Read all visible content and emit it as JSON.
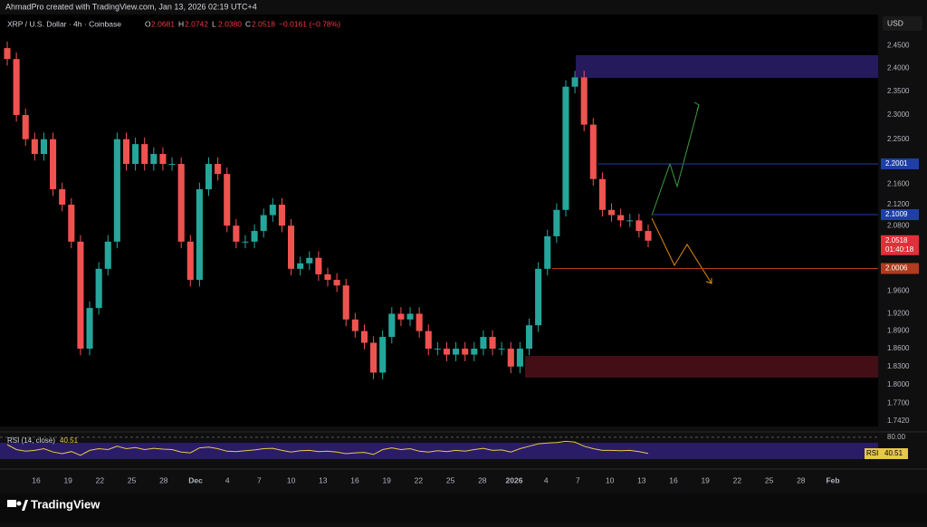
{
  "header": {
    "credit": "AhmadPro created with TradingView.com, Jan 13, 2026 02:19 UTC+4",
    "symbol": "XRP / U.S. Dollar · 4h · Coinbase",
    "ohlc": [
      {
        "label": "O",
        "value": "2.0681"
      },
      {
        "label": "H",
        "value": "2.0742"
      },
      {
        "label": "L",
        "value": "2.0380"
      },
      {
        "label": "C",
        "value": "2.0518"
      }
    ],
    "change": "−0.0161 (−0.78%)"
  },
  "price_axis": {
    "currency": "USD",
    "log": true,
    "ylim": [
      1.733,
      2.52
    ],
    "ticks": [
      {
        "value": 2.45,
        "label": "2.4500"
      },
      {
        "value": 2.4,
        "label": "2.4000"
      },
      {
        "value": 2.35,
        "label": "2.3500"
      },
      {
        "value": 2.3,
        "label": "2.3000"
      },
      {
        "value": 2.25,
        "label": "2.2500"
      },
      {
        "value": 2.16,
        "label": "2.1600"
      },
      {
        "value": 2.12,
        "label": "2.1200"
      },
      {
        "value": 2.08,
        "label": "2.0800"
      },
      {
        "value": 1.96,
        "label": "1.9600"
      },
      {
        "value": 1.92,
        "label": "1.9200"
      },
      {
        "value": 1.89,
        "label": "1.8900"
      },
      {
        "value": 1.86,
        "label": "1.8600"
      },
      {
        "value": 1.83,
        "label": "1.8300"
      },
      {
        "value": 1.8,
        "label": "1.8000"
      },
      {
        "value": 1.77,
        "label": "1.7700"
      },
      {
        "value": 1.742,
        "label": "1.7420"
      }
    ],
    "levels": [
      {
        "value": 2.2001,
        "label": "2.2001",
        "color": "#1e3fa8",
        "start": 660
      },
      {
        "value": 2.1009,
        "label": "2.1009",
        "color": "#1e3fa8",
        "start": 720
      },
      {
        "value": 2.0006,
        "label": "2.0006",
        "color": "#b23a1e",
        "start": 610
      }
    ],
    "last_price": {
      "value": 2.0518,
      "label": "2.0518",
      "countdown": "01:40:18"
    }
  },
  "closes": [
    2.42,
    2.3,
    2.25,
    2.22,
    2.25,
    2.15,
    2.12,
    2.05,
    1.86,
    1.93,
    2.0,
    2.05,
    2.25,
    2.2,
    2.24,
    2.2,
    2.22,
    2.2,
    2.2,
    2.05,
    1.98,
    2.15,
    2.2,
    2.18,
    2.08,
    2.05,
    2.05,
    2.07,
    2.1,
    2.12,
    2.08,
    2.0,
    2.01,
    2.02,
    1.99,
    1.98,
    1.97,
    1.91,
    1.89,
    1.87,
    1.82,
    1.88,
    1.92,
    1.91,
    1.92,
    1.89,
    1.86,
    1.86,
    1.85,
    1.86,
    1.85,
    1.86,
    1.88,
    1.86,
    1.86,
    1.83,
    1.86,
    1.9,
    2.0,
    2.06,
    2.11,
    2.36,
    2.38,
    2.28,
    2.17,
    2.11,
    2.1,
    2.09,
    2.09,
    2.07,
    2.0518
  ],
  "rsi": {
    "title": "RSI (14, close)",
    "value": "40.51",
    "tag": "RSI",
    "level": {
      "value": 80,
      "label": "80.00"
    },
    "ylim": [
      20,
      82
    ],
    "values": [
      62,
      50,
      46,
      48,
      52,
      44,
      40,
      45,
      36,
      48,
      52,
      50,
      58,
      52,
      55,
      50,
      53,
      51,
      50,
      44,
      42,
      54,
      56,
      52,
      46,
      45,
      47,
      49,
      52,
      53,
      48,
      44,
      47,
      48,
      45,
      46,
      44,
      40,
      42,
      43,
      38,
      50,
      54,
      50,
      52,
      46,
      44,
      47,
      45,
      48,
      46,
      50,
      53,
      48,
      49,
      44,
      52,
      58,
      64,
      66,
      67,
      70,
      68,
      58,
      52,
      48,
      48,
      47,
      48,
      45,
      40.51
    ]
  },
  "x_axis": [
    "16",
    "19",
    "22",
    "25",
    "28",
    "Dec",
    "4",
    "7",
    "10",
    "13",
    "16",
    "19",
    "22",
    "25",
    "28",
    "2026",
    "4",
    "7",
    "10",
    "13",
    "16",
    "19",
    "22",
    "25",
    "28",
    "Feb"
  ],
  "footer": {
    "brand": "TradingView"
  }
}
